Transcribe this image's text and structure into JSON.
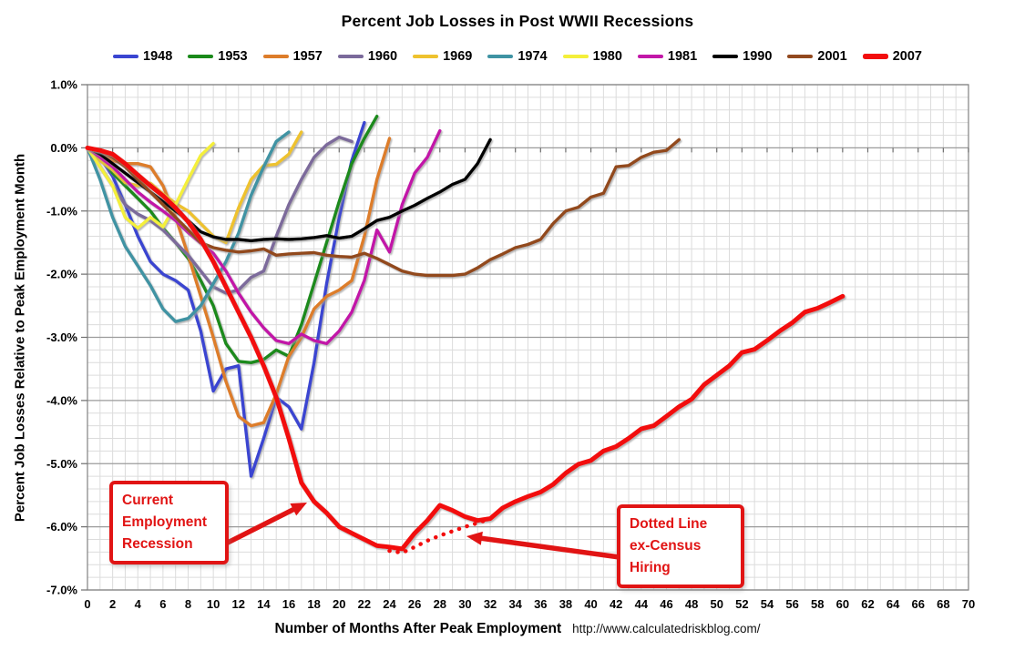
{
  "chart_data": {
    "type": "line",
    "title": "Percent Job Losses in Post WWII Recessions",
    "ylabel": "Percent Job Losses Relative to Peak Employment Month",
    "xlabel": "Number of Months After Peak Employment",
    "watermark": "http://www.calculatedriskblog.com/",
    "xlim": [
      0,
      70
    ],
    "ylim": [
      -7,
      1
    ],
    "x_ticks": [
      0,
      2,
      4,
      6,
      8,
      10,
      12,
      14,
      16,
      18,
      20,
      22,
      24,
      26,
      28,
      30,
      32,
      34,
      36,
      38,
      40,
      42,
      44,
      46,
      48,
      50,
      52,
      54,
      56,
      58,
      60,
      62,
      64,
      66,
      68,
      70
    ],
    "y_ticks": [
      {
        "value": 1,
        "label": "1.0%"
      },
      {
        "value": 0,
        "label": "0.0%"
      },
      {
        "value": -1,
        "label": "-1.0%"
      },
      {
        "value": -2,
        "label": "-2.0%"
      },
      {
        "value": -3,
        "label": "-3.0%"
      },
      {
        "value": -4,
        "label": "-4.0%"
      },
      {
        "value": -5,
        "label": "-5.0%"
      },
      {
        "value": -6,
        "label": "-6.0%"
      },
      {
        "value": -7,
        "label": "-7.0%"
      }
    ],
    "grid": {
      "minor_y_step": 0.2,
      "minor_x_step": 1,
      "minor_color": "#dcdcdc",
      "major_color": "#9b9b9b",
      "border_color": "#8a8a8a"
    },
    "legend_position": "top",
    "series": [
      {
        "name": "1948",
        "color": "#3a45d1",
        "width": 3.4,
        "values": [
          0,
          -0.15,
          -0.45,
          -0.9,
          -1.4,
          -1.8,
          -2.0,
          -2.1,
          -2.25,
          -2.9,
          -3.85,
          -3.5,
          -3.45,
          -5.2,
          -4.6,
          -3.95,
          -4.1,
          -4.45,
          -3.4,
          -2.15,
          -1.1,
          -0.2,
          0.4
        ]
      },
      {
        "name": "1953",
        "color": "#1a8a1a",
        "width": 3.4,
        "values": [
          0,
          -0.15,
          -0.4,
          -0.6,
          -0.8,
          -1.0,
          -1.27,
          -1.5,
          -1.75,
          -2.1,
          -2.5,
          -3.1,
          -3.38,
          -3.4,
          -3.35,
          -3.2,
          -3.3,
          -2.8,
          -2.15,
          -1.5,
          -0.85,
          -0.25,
          0.15,
          0.5
        ]
      },
      {
        "name": "1957",
        "color": "#dd7d2a",
        "width": 3.4,
        "values": [
          0,
          -0.1,
          -0.2,
          -0.25,
          -0.25,
          -0.3,
          -0.6,
          -1.1,
          -1.7,
          -2.35,
          -3.0,
          -3.7,
          -4.25,
          -4.4,
          -4.35,
          -3.9,
          -3.3,
          -3.0,
          -2.55,
          -2.35,
          -2.25,
          -2.1,
          -1.4,
          -0.5,
          0.15
        ]
      },
      {
        "name": "1960",
        "color": "#7b6a9b",
        "width": 3.4,
        "values": [
          0,
          -0.3,
          -0.6,
          -0.9,
          -1.05,
          -1.15,
          -1.3,
          -1.5,
          -1.7,
          -1.95,
          -2.2,
          -2.3,
          -2.25,
          -2.05,
          -1.95,
          -1.4,
          -0.9,
          -0.5,
          -0.15,
          0.05,
          0.17,
          0.1
        ]
      },
      {
        "name": "1969",
        "color": "#eec22e",
        "width": 3.4,
        "values": [
          0,
          -0.2,
          -0.35,
          -0.55,
          -0.6,
          -0.56,
          -0.73,
          -0.88,
          -1.0,
          -1.2,
          -1.4,
          -1.5,
          -0.95,
          -0.5,
          -0.28,
          -0.26,
          -0.1,
          0.25
        ]
      },
      {
        "name": "1974",
        "color": "#3f93a3",
        "width": 3.4,
        "values": [
          0,
          -0.5,
          -1.1,
          -1.56,
          -1.87,
          -2.18,
          -2.55,
          -2.75,
          -2.7,
          -2.5,
          -2.15,
          -1.8,
          -1.35,
          -0.75,
          -0.3,
          0.1,
          0.25
        ]
      },
      {
        "name": "1980",
        "color": "#f4ef3a",
        "width": 3.4,
        "values": [
          0,
          -0.3,
          -0.6,
          -1.1,
          -1.27,
          -1.1,
          -1.25,
          -0.9,
          -0.5,
          -0.12,
          0.07
        ]
      },
      {
        "name": "1981",
        "color": "#c217a8",
        "width": 3.4,
        "values": [
          0,
          -0.15,
          -0.3,
          -0.5,
          -0.7,
          -0.86,
          -1.0,
          -1.15,
          -1.34,
          -1.51,
          -1.67,
          -1.95,
          -2.3,
          -2.6,
          -2.85,
          -3.05,
          -3.1,
          -2.95,
          -3.05,
          -3.1,
          -2.9,
          -2.6,
          -2.1,
          -1.3,
          -1.65,
          -0.9,
          -0.4,
          -0.15,
          0.27
        ]
      },
      {
        "name": "1990",
        "color": "#000000",
        "width": 3.4,
        "values": [
          0,
          -0.1,
          -0.25,
          -0.4,
          -0.55,
          -0.7,
          -0.85,
          -1.0,
          -1.15,
          -1.33,
          -1.41,
          -1.45,
          -1.45,
          -1.47,
          -1.45,
          -1.44,
          -1.45,
          -1.44,
          -1.42,
          -1.39,
          -1.43,
          -1.4,
          -1.28,
          -1.15,
          -1.1,
          -1.0,
          -0.91,
          -0.8,
          -0.7,
          -0.58,
          -0.5,
          -0.25,
          0.13
        ]
      },
      {
        "name": "2001",
        "color": "#92491f",
        "width": 3.4,
        "values": [
          0,
          -0.05,
          -0.15,
          -0.3,
          -0.5,
          -0.7,
          -0.9,
          -1.1,
          -1.3,
          -1.5,
          -1.58,
          -1.62,
          -1.65,
          -1.63,
          -1.6,
          -1.7,
          -1.68,
          -1.67,
          -1.66,
          -1.7,
          -1.72,
          -1.73,
          -1.67,
          -1.75,
          -1.85,
          -1.95,
          -2.0,
          -2.02,
          -2.02,
          -2.02,
          -2.0,
          -1.9,
          -1.77,
          -1.68,
          -1.58,
          -1.53,
          -1.45,
          -1.2,
          -1.0,
          -0.94,
          -0.78,
          -0.72,
          -0.3,
          -0.28,
          -0.15,
          -0.07,
          -0.04,
          0.13
        ]
      },
      {
        "name": "2007",
        "color": "#f20d0d",
        "width": 5,
        "values": [
          0,
          -0.04,
          -0.1,
          -0.25,
          -0.43,
          -0.6,
          -0.76,
          -0.95,
          -1.17,
          -1.45,
          -1.8,
          -2.2,
          -2.6,
          -3.0,
          -3.45,
          -3.95,
          -4.6,
          -5.3,
          -5.6,
          -5.78,
          -6.0,
          -6.1,
          -6.2,
          -6.3,
          -6.32,
          -6.35,
          -6.1,
          -5.9,
          -5.66,
          -5.74,
          -5.84,
          -5.9,
          -5.87,
          -5.7,
          -5.6,
          -5.52,
          -5.45,
          -5.33,
          -5.15,
          -5.01,
          -4.95,
          -4.8,
          -4.73,
          -4.6,
          -4.45,
          -4.4,
          -4.25,
          -4.1,
          -3.98,
          -3.75,
          -3.6,
          -3.45,
          -3.24,
          -3.19,
          -3.05,
          -2.9,
          -2.77,
          -2.6,
          -2.54,
          -2.45,
          -2.35
        ]
      }
    ],
    "dotted_series": {
      "name": "2007 ex-Census (dotted)",
      "color": "#f20d0d",
      "width": 4.5,
      "start_month": 24,
      "values": [
        -6.38,
        -6.41,
        -6.32,
        -6.22,
        -6.14,
        -6.07,
        -6.0,
        -5.94,
        -5.87
      ]
    }
  },
  "annotations": {
    "accent_color": "#e11414",
    "current": {
      "text": "Current\nEmployment\nRecession"
    },
    "ex_census": {
      "text": "Dotted Line\nex-Census\nHiring"
    }
  }
}
